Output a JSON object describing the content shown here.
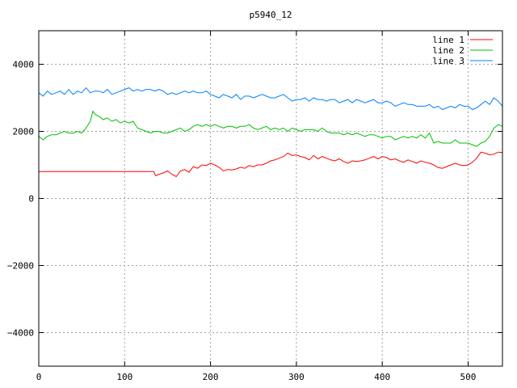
{
  "chart_data": {
    "type": "line",
    "title": "p5940_12",
    "xlabel": "",
    "ylabel": "",
    "xlim": [
      0,
      540
    ],
    "ylim": [
      -5000,
      5000
    ],
    "grid": true,
    "legend_position": "top-right",
    "x_ticks": [
      0,
      100,
      200,
      300,
      400,
      500
    ],
    "y_ticks": [
      -4000,
      -2000,
      0,
      2000,
      4000
    ],
    "x_tick_labels": [
      "0",
      "100",
      "200",
      "300",
      "400",
      "500"
    ],
    "y_tick_labels": [
      "−4000",
      "−2000",
      "0",
      "2000",
      "4000"
    ],
    "series": [
      {
        "name": "line 1",
        "color": "#ff0000",
        "x": [
          0,
          20,
          40,
          60,
          80,
          100,
          120,
          134,
          136,
          140,
          145,
          150,
          155,
          160,
          165,
          170,
          175,
          180,
          185,
          190,
          195,
          200,
          205,
          210,
          215,
          220,
          225,
          230,
          235,
          240,
          245,
          250,
          255,
          260,
          265,
          270,
          275,
          280,
          285,
          290,
          295,
          300,
          305,
          310,
          315,
          320,
          325,
          330,
          335,
          340,
          345,
          350,
          355,
          360,
          365,
          370,
          375,
          380,
          385,
          390,
          395,
          400,
          405,
          410,
          415,
          420,
          425,
          430,
          435,
          440,
          445,
          450,
          455,
          460,
          465,
          470,
          475,
          480,
          485,
          490,
          495,
          500,
          505,
          510,
          515,
          520,
          525,
          530,
          535,
          540
        ],
        "y": [
          800,
          800,
          800,
          800,
          800,
          800,
          800,
          800,
          680,
          720,
          760,
          820,
          720,
          650,
          820,
          860,
          780,
          950,
          900,
          1000,
          980,
          1050,
          1000,
          930,
          820,
          860,
          850,
          880,
          930,
          900,
          980,
          950,
          1000,
          1000,
          1050,
          1120,
          1150,
          1200,
          1250,
          1350,
          1280,
          1300,
          1250,
          1220,
          1150,
          1280,
          1180,
          1250,
          1200,
          1150,
          1120,
          1180,
          1100,
          1050,
          1120,
          1100,
          1120,
          1150,
          1200,
          1250,
          1180,
          1250,
          1220,
          1150,
          1180,
          1120,
          1080,
          1150,
          1100,
          1050,
          1120,
          1080,
          1050,
          1000,
          920,
          900,
          950,
          1000,
          1050,
          1000,
          980,
          1000,
          1080,
          1200,
          1380,
          1350,
          1300,
          1320,
          1380,
          1370
        ]
      },
      {
        "name": "line 2",
        "color": "#00c000",
        "x": [
          0,
          5,
          10,
          15,
          20,
          25,
          30,
          35,
          40,
          45,
          50,
          55,
          60,
          63,
          66,
          70,
          75,
          80,
          85,
          90,
          95,
          100,
          105,
          110,
          115,
          120,
          125,
          130,
          135,
          140,
          145,
          150,
          155,
          160,
          165,
          170,
          175,
          180,
          185,
          190,
          195,
          200,
          205,
          210,
          215,
          220,
          225,
          230,
          235,
          240,
          245,
          250,
          255,
          260,
          265,
          270,
          275,
          280,
          285,
          290,
          295,
          300,
          305,
          310,
          315,
          320,
          325,
          330,
          335,
          340,
          345,
          350,
          355,
          360,
          365,
          370,
          375,
          380,
          385,
          390,
          395,
          400,
          405,
          410,
          415,
          420,
          425,
          430,
          435,
          440,
          445,
          450,
          455,
          460,
          465,
          470,
          475,
          480,
          485,
          490,
          495,
          500,
          505,
          510,
          515,
          520,
          525,
          530,
          535,
          540
        ],
        "y": [
          1850,
          1750,
          1850,
          1900,
          1900,
          1950,
          2000,
          1950,
          1950,
          2000,
          1950,
          2100,
          2300,
          2600,
          2500,
          2450,
          2350,
          2400,
          2300,
          2350,
          2250,
          2300,
          2250,
          2300,
          2100,
          2050,
          2000,
          1950,
          2000,
          2000,
          1950,
          1950,
          2000,
          2050,
          2100,
          2000,
          2050,
          2150,
          2200,
          2150,
          2200,
          2150,
          2200,
          2150,
          2100,
          2150,
          2150,
          2100,
          2150,
          2150,
          2200,
          2100,
          2050,
          2100,
          2150,
          2050,
          2100,
          2050,
          2100,
          2000,
          2100,
          2050,
          2000,
          2050,
          2050,
          2050,
          2000,
          2100,
          2000,
          1950,
          1950,
          1950,
          1900,
          1950,
          1900,
          1950,
          1900,
          1850,
          1900,
          1900,
          1850,
          1800,
          1850,
          1850,
          1750,
          1800,
          1850,
          1800,
          1850,
          1800,
          1900,
          1800,
          1950,
          1650,
          1700,
          1650,
          1650,
          1650,
          1750,
          1650,
          1650,
          1650,
          1600,
          1550,
          1650,
          1700,
          1850,
          2100,
          2200,
          2150
        ]
      },
      {
        "name": "line 3",
        "color": "#0080ff",
        "x": [
          0,
          5,
          10,
          15,
          20,
          25,
          30,
          35,
          40,
          45,
          50,
          55,
          60,
          65,
          70,
          75,
          80,
          85,
          90,
          95,
          100,
          105,
          110,
          115,
          120,
          125,
          130,
          135,
          140,
          145,
          150,
          155,
          160,
          165,
          170,
          175,
          180,
          185,
          190,
          195,
          200,
          205,
          210,
          215,
          220,
          225,
          230,
          235,
          240,
          245,
          250,
          255,
          260,
          265,
          270,
          275,
          280,
          285,
          290,
          295,
          300,
          305,
          310,
          315,
          320,
          325,
          330,
          335,
          340,
          345,
          350,
          355,
          360,
          365,
          370,
          375,
          380,
          385,
          390,
          395,
          400,
          405,
          410,
          415,
          420,
          425,
          430,
          435,
          440,
          445,
          450,
          455,
          460,
          465,
          470,
          475,
          480,
          485,
          490,
          495,
          500,
          505,
          510,
          515,
          520,
          525,
          530,
          535,
          540
        ],
        "y": [
          3150,
          3050,
          3200,
          3100,
          3150,
          3200,
          3100,
          3250,
          3100,
          3200,
          3150,
          3300,
          3150,
          3200,
          3200,
          3150,
          3250,
          3100,
          3150,
          3200,
          3250,
          3300,
          3200,
          3250,
          3200,
          3250,
          3250,
          3200,
          3250,
          3200,
          3100,
          3150,
          3100,
          3150,
          3200,
          3150,
          3200,
          3150,
          3150,
          3200,
          3100,
          3050,
          3000,
          3100,
          3050,
          3000,
          3100,
          2950,
          3050,
          3050,
          3000,
          3050,
          3100,
          3050,
          3000,
          3000,
          3050,
          3100,
          3000,
          2900,
          2950,
          2950,
          3000,
          2900,
          3000,
          2950,
          2950,
          2900,
          2950,
          2950,
          2850,
          2900,
          2950,
          2850,
          2950,
          2900,
          2850,
          2900,
          2950,
          2850,
          2850,
          2900,
          2850,
          2750,
          2800,
          2850,
          2800,
          2800,
          2750,
          2750,
          2750,
          2800,
          2700,
          2750,
          2650,
          2700,
          2750,
          2700,
          2800,
          2750,
          2750,
          2650,
          2700,
          2800,
          2900,
          2800,
          3000,
          2900,
          2750
        ]
      }
    ]
  }
}
